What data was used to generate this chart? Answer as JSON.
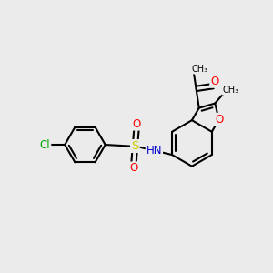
{
  "background_color": "#ebebeb",
  "bond_color": "#000000",
  "bond_width": 1.5,
  "atom_colors": {
    "O": "#ff0000",
    "N": "#0000cd",
    "S": "#cccc00",
    "Cl": "#00aa00",
    "H": "#888888"
  },
  "font_size": 8.5,
  "figsize": [
    3.0,
    3.0
  ],
  "dpi": 100,
  "xlim": [
    0,
    10
  ],
  "ylim": [
    0,
    10
  ]
}
